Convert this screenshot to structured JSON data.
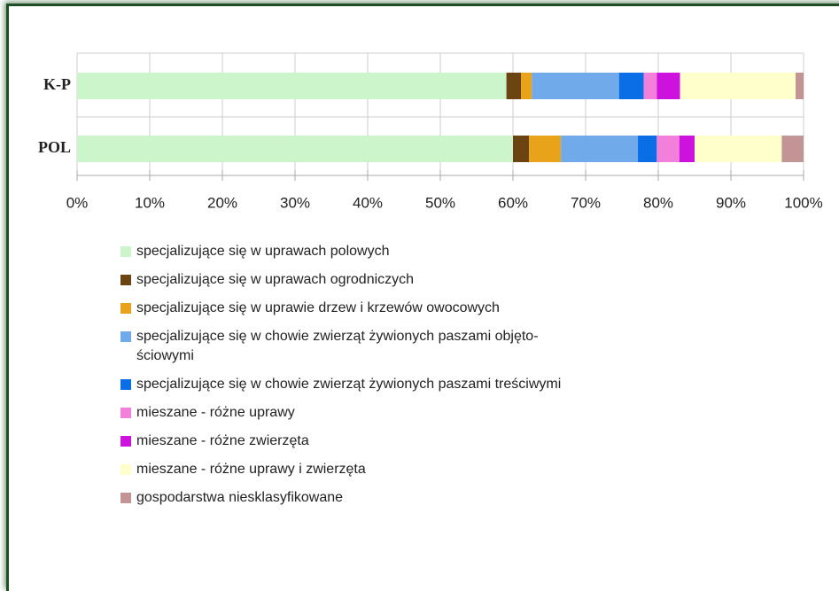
{
  "chart_data": {
    "type": "stacked-barh",
    "categories": [
      "K-P",
      "POL"
    ],
    "series": [
      {
        "name": "specjalizujące się w uprawach polowych",
        "color": "#ccf5cc",
        "values": [
          59.1,
          60.0
        ]
      },
      {
        "name": "specjalizujące się w uprawach ogrodniczych",
        "color": "#6b4412",
        "values": [
          2.0,
          2.2
        ]
      },
      {
        "name": "specjalizujące się w uprawie drzew i krzewów owocowych",
        "color": "#e8a31a",
        "values": [
          1.5,
          4.4
        ]
      },
      {
        "name": "specjalizujące się w chowie zwierząt żywionych paszami objęto-\nściowymi",
        "color": "#70aaea",
        "values": [
          12.0,
          10.6
        ]
      },
      {
        "name": "specjalizujące się w chowie zwierząt żywionych paszami treściwymi",
        "color": "#0a6ee6",
        "values": [
          3.4,
          2.6
        ]
      },
      {
        "name": "mieszane - różne uprawy",
        "color": "#f280da",
        "values": [
          1.8,
          3.1
        ]
      },
      {
        "name": "mieszane - różne zwierzęta",
        "color": "#cc12dc",
        "values": [
          3.2,
          2.1
        ]
      },
      {
        "name": "mieszane - różne uprawy i zwierzęta",
        "color": "#ffffcc",
        "values": [
          15.9,
          12.0
        ]
      },
      {
        "name": "gospodarstwa niesklasyfikowane",
        "color": "#c29494",
        "values": [
          1.1,
          3.0
        ]
      }
    ],
    "xlim": [
      0,
      100
    ],
    "xticks": [
      {
        "value": 0,
        "label": "0%"
      },
      {
        "value": 10,
        "label": "10%"
      },
      {
        "value": 20,
        "label": "20%"
      },
      {
        "value": 30,
        "label": "30%"
      },
      {
        "value": 40,
        "label": "40%"
      },
      {
        "value": 50,
        "label": "50%"
      },
      {
        "value": 60,
        "label": "60%"
      },
      {
        "value": 70,
        "label": "70%"
      },
      {
        "value": 80,
        "label": "80%"
      },
      {
        "value": 90,
        "label": "90%"
      },
      {
        "value": 100,
        "label": "100%"
      }
    ],
    "grid": true
  }
}
